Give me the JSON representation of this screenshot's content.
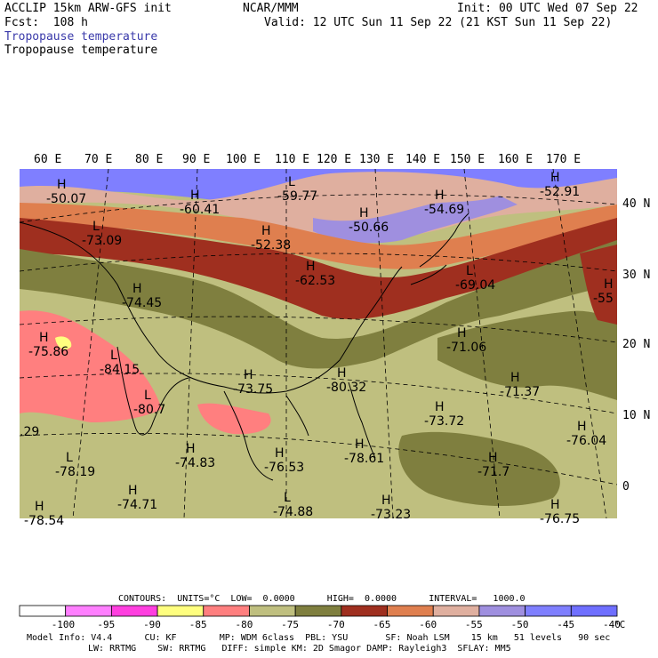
{
  "header": {
    "model": "ACCLIP 15km ARW-GFS init",
    "fcst": "Fcst:  108 h",
    "org": "NCAR/MMM",
    "init": "Init: 00 UTC Wed 07 Sep 22",
    "valid": "Valid: 12 UTC Sun 11 Sep 22 (21 KST Sun 11 Sep 22)",
    "field_blue": "Tropopause temperature",
    "field_black": "Tropopause temperature"
  },
  "map": {
    "lon_labels": [
      "60 E",
      "70 E",
      "80 E",
      "90 E",
      "100 E",
      "110 E",
      "120 E",
      "130 E",
      "140 E",
      "150 E",
      "160 E",
      "170 E"
    ],
    "lat_labels": [
      "40 N",
      "30 N",
      "20 N",
      "10 N",
      "0"
    ],
    "centers": [
      {
        "mark": "H",
        "value": "-50.07"
      },
      {
        "mark": "H",
        "value": "-60.41"
      },
      {
        "mark": "L",
        "value": "-59.77"
      },
      {
        "mark": "H",
        "value": "-50.66"
      },
      {
        "mark": "H",
        "value": "-54.69"
      },
      {
        "mark": "H",
        "value": "-52.91"
      },
      {
        "mark": "L",
        "value": "-73.09"
      },
      {
        "mark": "H",
        "value": "-52.38"
      },
      {
        "mark": "H",
        "value": "-62.53"
      },
      {
        "mark": "L",
        "value": "-69.04"
      },
      {
        "mark": "H",
        "value": "-55"
      },
      {
        "mark": "H",
        "value": "-74.45"
      },
      {
        "mark": "H",
        "value": "-75.86"
      },
      {
        "mark": "L",
        "value": "-84.15"
      },
      {
        "mark": "H",
        "value": "-71.06"
      },
      {
        "mark": "H",
        "value": "-73.75"
      },
      {
        "mark": "H",
        "value": "-80.32"
      },
      {
        "mark": "L",
        "value": "-80.7"
      },
      {
        "mark": "H",
        "value": "-71.37"
      },
      {
        "mark": "H",
        "value": "-73.72"
      },
      {
        "mark": "",
        "value": ".29"
      },
      {
        "mark": "H",
        "value": "-76.04"
      },
      {
        "mark": "L",
        "value": "-78.19"
      },
      {
        "mark": "H",
        "value": "-74.83"
      },
      {
        "mark": "H",
        "value": "-76.53"
      },
      {
        "mark": "H",
        "value": "-78.61"
      },
      {
        "mark": "H",
        "value": "-71.7"
      },
      {
        "mark": "H",
        "value": "-74.71"
      },
      {
        "mark": "L",
        "value": "-74.88"
      },
      {
        "mark": "H",
        "value": "-78.54"
      },
      {
        "mark": "H",
        "value": "-73.23"
      },
      {
        "mark": "H",
        "value": "-76.75"
      }
    ]
  },
  "contours_line": "CONTOURS:  UNITS=°C  LOW=  0.0000      HIGH=  0.0000      INTERVAL=   1000.0",
  "legend": {
    "colors": [
      "#ffffff",
      "#ff7fff",
      "#ff3fdf",
      "#ffff7f",
      "#ff7f7f",
      "#bfbf7f",
      "#7f7f3f",
      "#9f2f1f",
      "#df7f4f",
      "#dfaf9f",
      "#9f8fdf",
      "#7f7fff",
      "#6f6fff"
    ],
    "ticks": [
      "-100",
      "-95",
      "-90",
      "-85",
      "-80",
      "-75",
      "-70",
      "-65",
      "-60",
      "-55",
      "-50",
      "-45",
      "-40"
    ],
    "unit": "°C"
  },
  "footer": {
    "line1": "Model Info: V4.4      CU: KF        MP: WDM 6class  PBL: YSU       SF: Noah LSM    15 km   51 levels   90 sec",
    "line2": "LW: RRTMG    SW: RRTMG   DIFF: simple KM: 2D Smagor DAMP: Rayleigh3  SFLAY: MM5"
  }
}
